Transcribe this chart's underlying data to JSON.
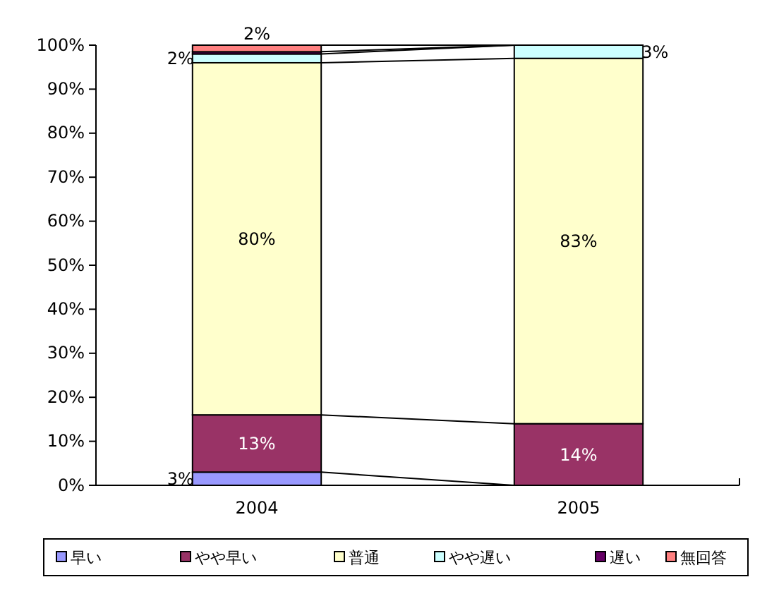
{
  "chart_data": {
    "type": "bar",
    "stacked": true,
    "categories": [
      "2004",
      "2005"
    ],
    "series": [
      {
        "name": "早い",
        "color": "#9999ff",
        "values": [
          3,
          0
        ],
        "value_labels": [
          "3%",
          null
        ]
      },
      {
        "name": "やや早い",
        "color": "#993366",
        "values": [
          13,
          14
        ],
        "value_labels": [
          "13%",
          "14%"
        ]
      },
      {
        "name": "普通",
        "color": "#ffffcc",
        "values": [
          80,
          83
        ],
        "value_labels": [
          "80%",
          "83%"
        ]
      },
      {
        "name": "やや遅い",
        "color": "#ccffff",
        "values": [
          2,
          3
        ],
        "value_labels": [
          "2%",
          "3%"
        ]
      },
      {
        "name": "遅い",
        "color": "#660066",
        "values": [
          0.5,
          0
        ],
        "value_labels": [
          null,
          null
        ]
      },
      {
        "name": "無回答",
        "color": "#ff8080",
        "values": [
          1.5,
          0
        ],
        "value_labels": [
          "2%",
          null
        ]
      }
    ],
    "ylim": [
      0,
      100
    ],
    "yticks": [
      {
        "value": 0,
        "label": "0%"
      },
      {
        "value": 10,
        "label": "10%"
      },
      {
        "value": 20,
        "label": "20%"
      },
      {
        "value": 30,
        "label": "30%"
      },
      {
        "value": 40,
        "label": "40%"
      },
      {
        "value": 50,
        "label": "50%"
      },
      {
        "value": 60,
        "label": "60%"
      },
      {
        "value": 70,
        "label": "70%"
      },
      {
        "value": 80,
        "label": "80%"
      },
      {
        "value": 90,
        "label": "90%"
      },
      {
        "value": 100,
        "label": "100%"
      }
    ],
    "grid": false,
    "legend": "bottom"
  }
}
